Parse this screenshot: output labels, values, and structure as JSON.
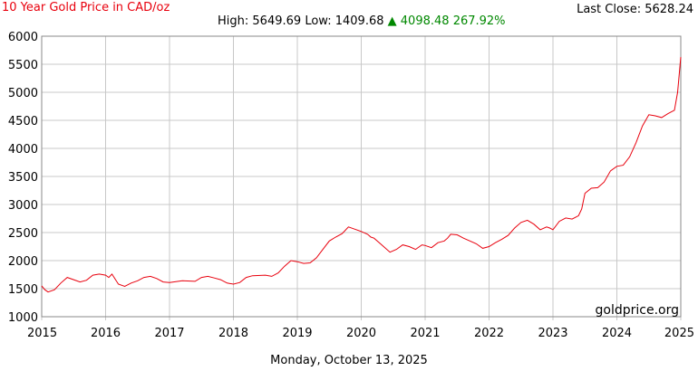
{
  "header": {
    "title": "10 Year Gold Price in CAD/oz",
    "last_close_label": "Last Close:",
    "last_close_value": "5628.24",
    "high_label": "High:",
    "high_value": "5649.69",
    "low_label": "Low:",
    "low_value": "1409.68",
    "up_arrow": "▲",
    "change_value": "4098.48",
    "change_percent": "267.92%"
  },
  "footer": {
    "date": "Monday, October 13, 2025"
  },
  "watermark": "goldprice.org",
  "colors": {
    "line": "#e8000d",
    "grid": "#c8c8c8",
    "up": "#008800",
    "title": "#e8000d"
  },
  "chart_data": {
    "type": "line",
    "title": "10 Year Gold Price in CAD/oz",
    "xlabel": "",
    "ylabel": "",
    "xlim": [
      2015,
      2025
    ],
    "ylim": [
      1000,
      6000
    ],
    "grid": true,
    "x_ticks": [
      "2015",
      "2016",
      "2017",
      "2018",
      "2019",
      "2020",
      "2021",
      "2022",
      "2023",
      "2024",
      "2025"
    ],
    "y_ticks": [
      "1000",
      "1500",
      "2000",
      "2500",
      "3000",
      "3500",
      "4000",
      "4500",
      "5000",
      "5500",
      "6000"
    ],
    "series": [
      {
        "x": [
          2015.0,
          2015.05,
          2015.1,
          2015.2,
          2015.3,
          2015.4,
          2015.5,
          2015.6,
          2015.7,
          2015.8,
          2015.9,
          2016.0,
          2016.05,
          2016.1,
          2016.2,
          2016.3,
          2016.4,
          2016.5,
          2016.6,
          2016.7,
          2016.8,
          2016.9,
          2017.0,
          2017.2,
          2017.4,
          2017.5,
          2017.6,
          2017.7,
          2017.8,
          2017.9,
          2018.0,
          2018.1,
          2018.2,
          2018.3,
          2018.5,
          2018.6,
          2018.7,
          2018.8,
          2018.9,
          2019.0,
          2019.1,
          2019.2,
          2019.3,
          2019.4,
          2019.5,
          2019.6,
          2019.7,
          2019.8,
          2019.9,
          2020.0,
          2020.1,
          2020.15,
          2020.2,
          2020.25,
          2020.35,
          2020.45,
          2020.55,
          2020.65,
          2020.75,
          2020.85,
          2020.95,
          2021.0,
          2021.1,
          2021.2,
          2021.3,
          2021.35,
          2021.4,
          2021.5,
          2021.6,
          2021.7,
          2021.8,
          2021.9,
          2022.0,
          2022.1,
          2022.2,
          2022.3,
          2022.4,
          2022.5,
          2022.6,
          2022.7,
          2022.8,
          2022.9,
          2022.95,
          2023.0,
          2023.1,
          2023.2,
          2023.3,
          2023.4,
          2023.45,
          2023.5,
          2023.6,
          2023.7,
          2023.8,
          2023.9,
          2024.0,
          2024.1,
          2024.2,
          2024.3,
          2024.4,
          2024.5,
          2024.6,
          2024.7,
          2024.8,
          2024.9,
          2024.95,
          2025.0
        ],
        "values": [
          1550,
          1480,
          1440,
          1480,
          1600,
          1700,
          1660,
          1620,
          1650,
          1740,
          1760,
          1740,
          1700,
          1760,
          1580,
          1540,
          1600,
          1640,
          1700,
          1720,
          1680,
          1620,
          1610,
          1640,
          1630,
          1700,
          1720,
          1690,
          1660,
          1600,
          1580,
          1610,
          1700,
          1730,
          1740,
          1720,
          1780,
          1900,
          2000,
          1980,
          1950,
          1960,
          2050,
          2200,
          2350,
          2420,
          2480,
          2600,
          2560,
          2520,
          2470,
          2420,
          2400,
          2350,
          2250,
          2150,
          2200,
          2280,
          2250,
          2200,
          2280,
          2270,
          2230,
          2320,
          2350,
          2400,
          2470,
          2460,
          2400,
          2350,
          2300,
          2220,
          2250,
          2320,
          2380,
          2450,
          2580,
          2680,
          2720,
          2650,
          2550,
          2600,
          2580,
          2550,
          2700,
          2760,
          2740,
          2800,
          2920,
          3200,
          3290,
          3300,
          3400,
          3600,
          3680,
          3700,
          3850,
          4100,
          4400,
          4600,
          4580,
          4550,
          4620,
          4680,
          5000,
          5628
        ]
      }
    ]
  }
}
